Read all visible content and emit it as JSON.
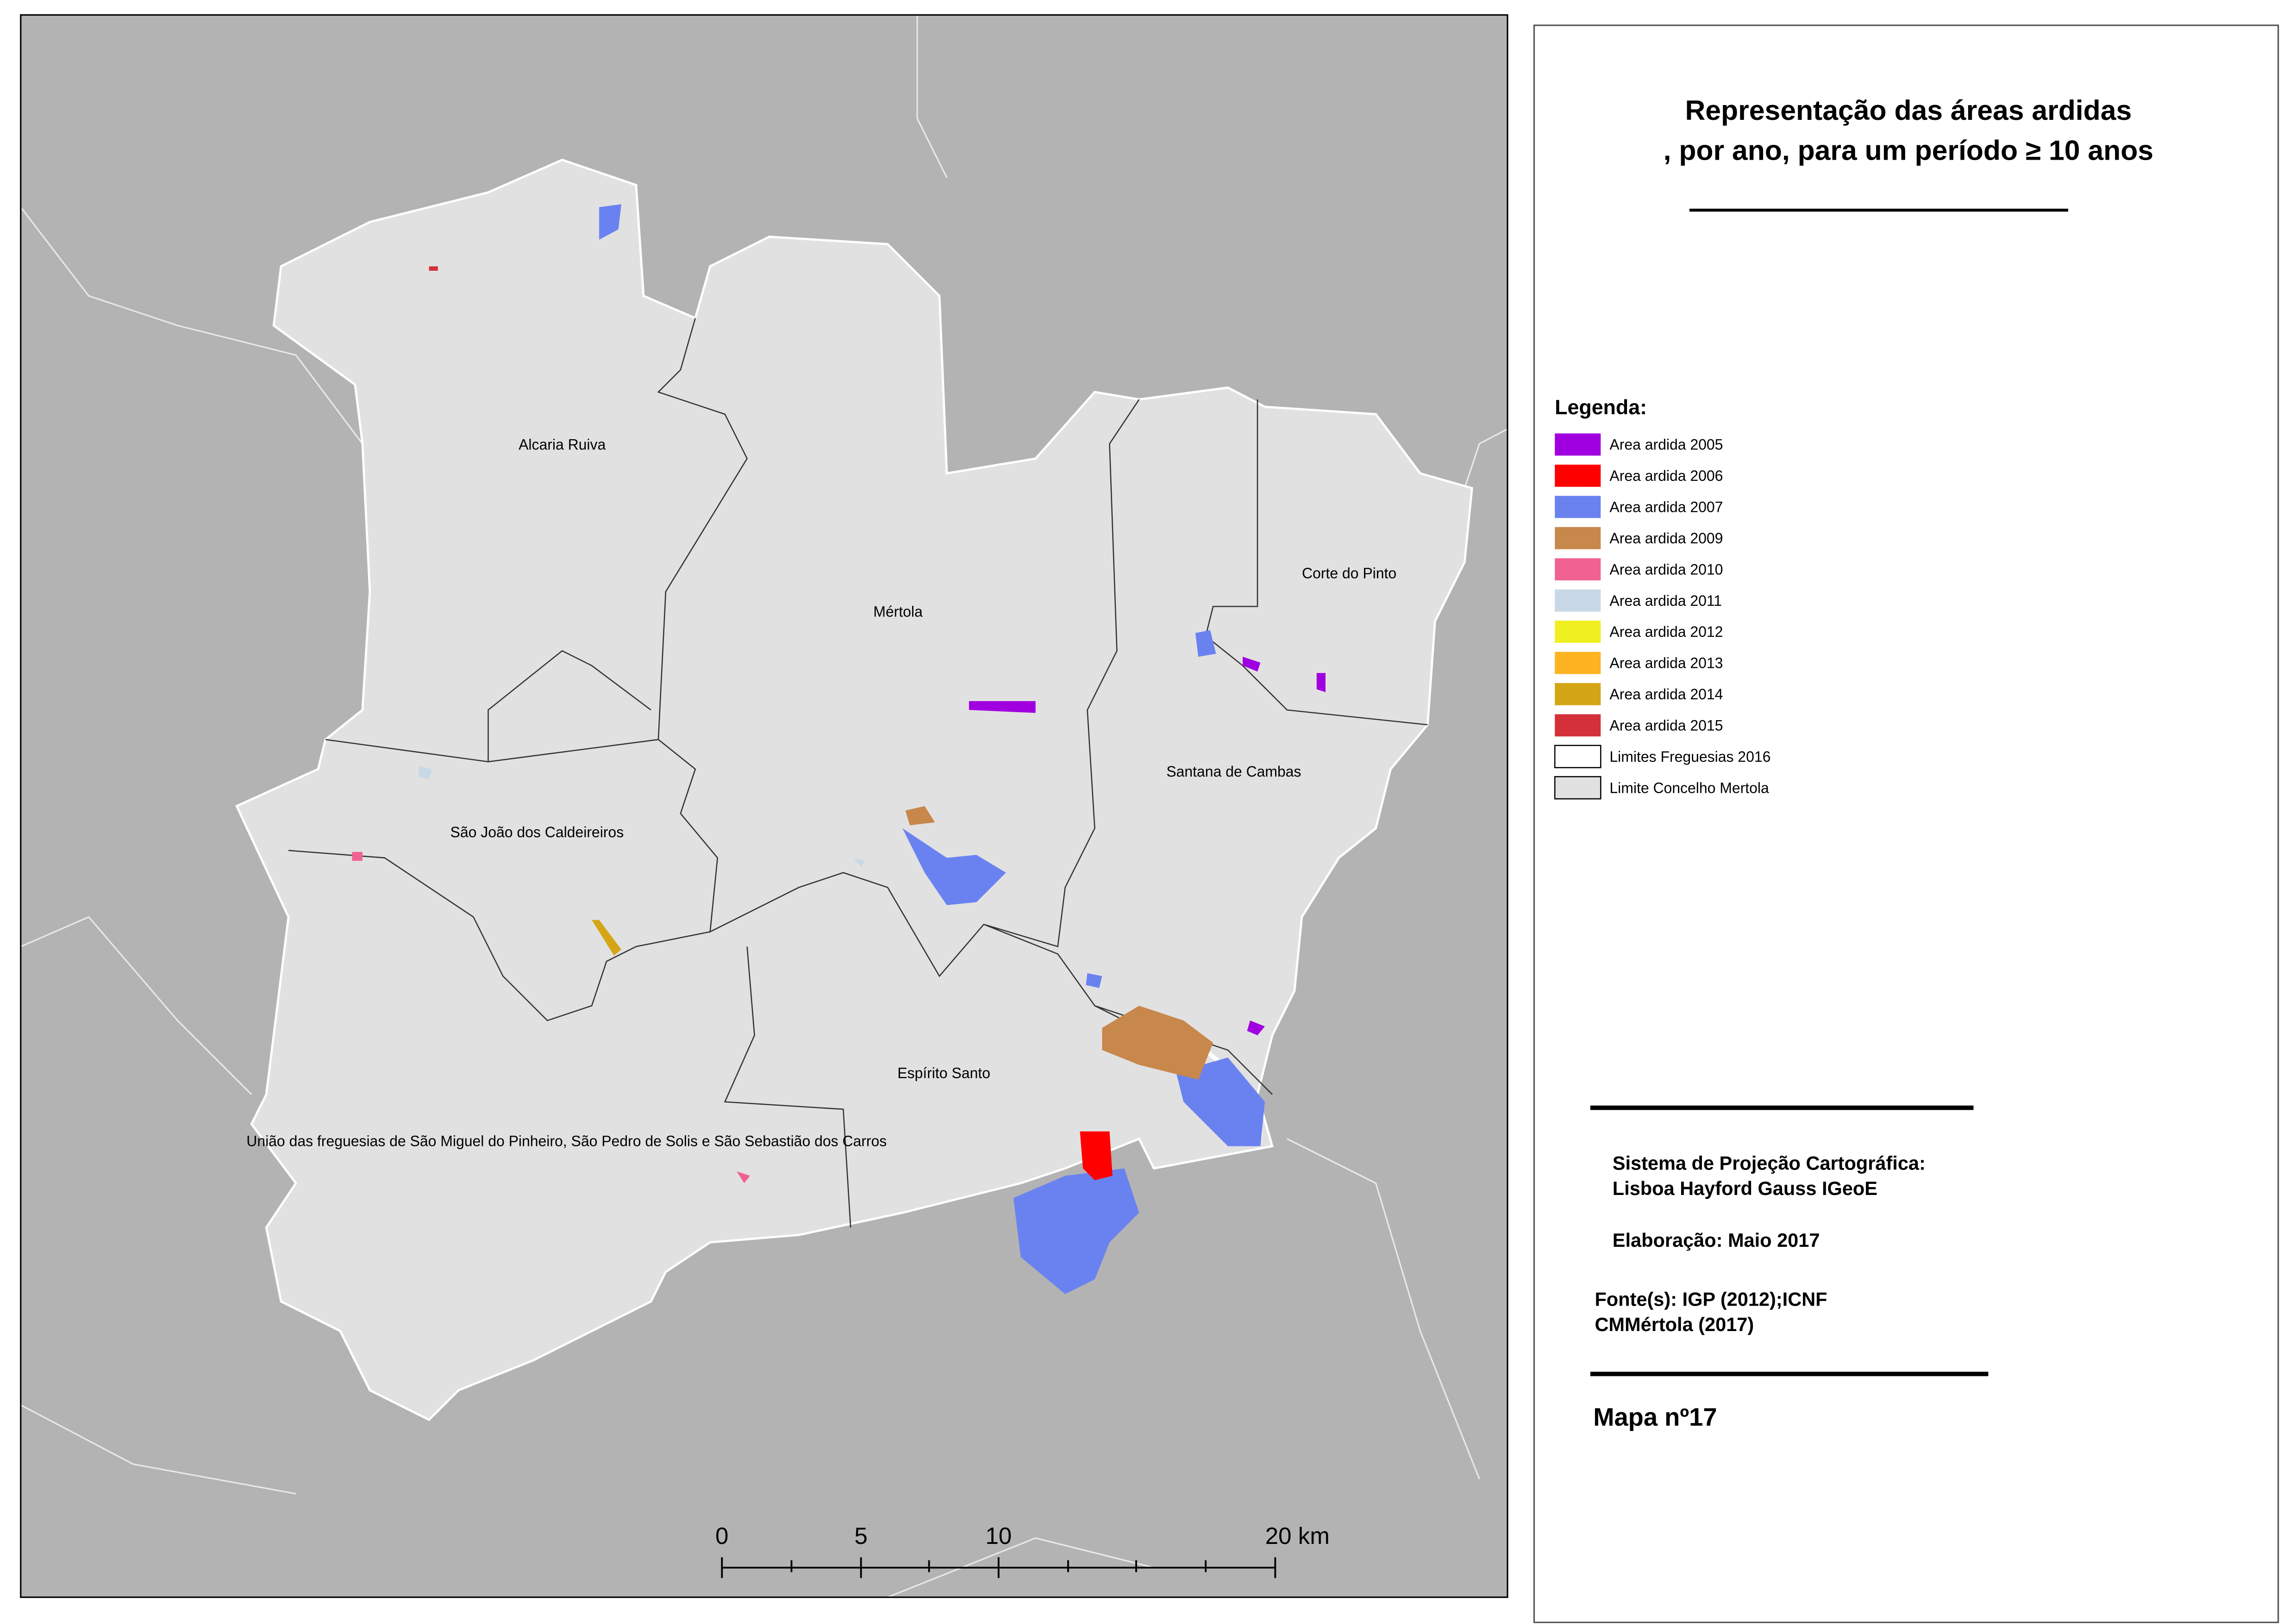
{
  "title": [
    "Representação das áreas ardidas",
    ", por ano, para um período ≥ 10 anos"
  ],
  "legend": {
    "title": "Legenda:",
    "items": [
      {
        "label": "Area ardida 2005",
        "color": "#a000e0"
      },
      {
        "label": "Area ardida 2006",
        "color": "#ff0000"
      },
      {
        "label": "Area ardida 2007",
        "color": "#6a82f0"
      },
      {
        "label": "Area ardida 2009",
        "color": "#c8874b"
      },
      {
        "label": "Area ardida 2010",
        "color": "#f06292"
      },
      {
        "label": "Area ardida 2011",
        "color": "#c8d8e6"
      },
      {
        "label": "Area ardida 2012",
        "color": "#f0f020"
      },
      {
        "label": "Area ardida 2013",
        "color": "#ffb320"
      },
      {
        "label": "Area ardida 2014",
        "color": "#d4a514"
      },
      {
        "label": "Area ardida 2015",
        "color": "#d4303a"
      },
      {
        "label": "Limites Freguesias 2016",
        "color": "#ffffff"
      },
      {
        "label": "Limite Concelho Mertola",
        "color": "#e1e1e1"
      }
    ]
  },
  "places": [
    "Alcaria Ruiva",
    "Mértola",
    "Corte do Pinto",
    "Santana de Cambas",
    "São João dos Caldeireiros",
    "Espírito Santo",
    "União das freguesias de São Miguel do Pinheiro, São Pedro de Solis e São Sebastião dos Carros"
  ],
  "info": {
    "projection": [
      "Sistema de Projeção Cartográfica:",
      "Lisboa Hayford Gauss IGeoE"
    ],
    "date": "Elaboração: Maio 2017",
    "source": [
      "Fonte(s): IGP (2012);ICNF",
      "CMMértola (2017)"
    ],
    "map_number": "Mapa nº17"
  },
  "scale_bar": {
    "labels": [
      "0",
      "5",
      "10",
      "20 km"
    ]
  }
}
